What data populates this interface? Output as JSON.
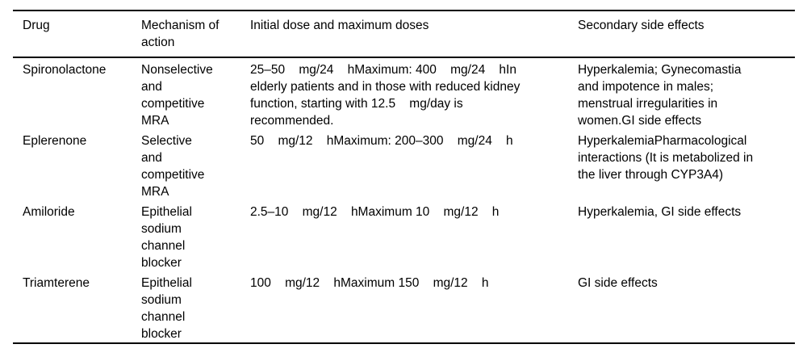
{
  "table": {
    "columns": [
      {
        "label": "Drug"
      },
      {
        "label": "Mechanism of\naction"
      },
      {
        "label": "Initial dose and maximum doses"
      },
      {
        "label": "Secondary side effects"
      }
    ],
    "rows": [
      {
        "drug": "Spironolactone",
        "mechanism": "Nonselective\nand\ncompetitive\nMRA",
        "dose": "25–50    mg/24    hMaximum: 400    mg/24    hIn\nelderly patients and in those with reduced kidney\nfunction, starting with 12.5    mg/day is\nrecommended.",
        "side_effects": "Hyperkalemia; Gynecomastia\nand impotence in males;\nmenstrual irregularities in\nwomen.GI side effects"
      },
      {
        "drug": "Eplerenone",
        "mechanism": "Selective\nand\ncompetitive\nMRA",
        "dose": "50    mg/12    hMaximum: 200–300    mg/24    h",
        "side_effects": "HyperkalemiaPharmacological\ninteractions (It is metabolized in\nthe liver through CYP3A4)"
      },
      {
        "drug": "Amiloride",
        "mechanism": "Epithelial\nsodium\nchannel\nblocker",
        "dose": "2.5–10    mg/12    hMaximum 10    mg/12    h",
        "side_effects": "Hyperkalemia, GI side effects"
      },
      {
        "drug": "Triamterene",
        "mechanism": "Epithelial\nsodium\nchannel\nblocker",
        "dose": "100    mg/12    hMaximum 150    mg/12    h",
        "side_effects": "GI side effects"
      }
    ],
    "colors": {
      "text": "#000000",
      "rule": "#000000",
      "background": "#ffffff"
    }
  }
}
